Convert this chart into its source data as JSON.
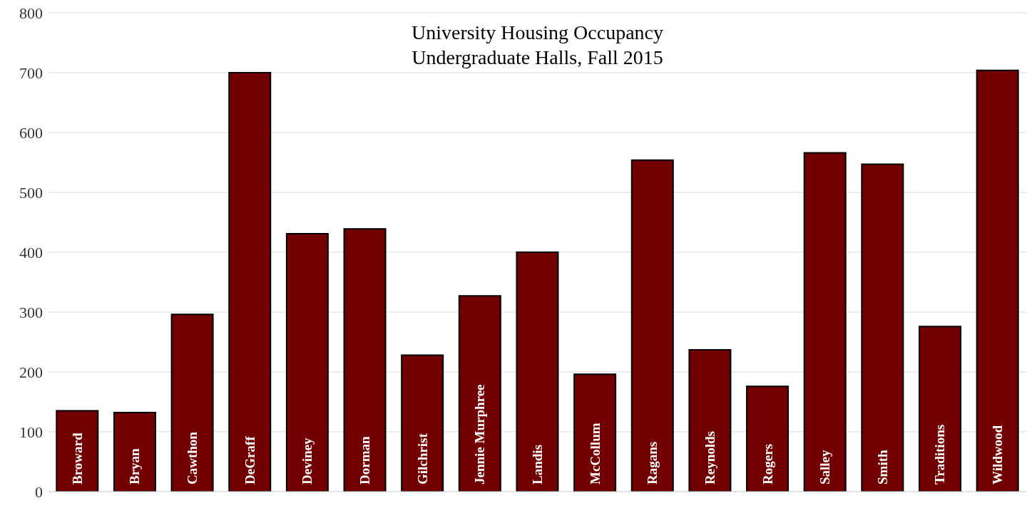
{
  "chart_data": {
    "type": "bar",
    "title": "University Housing Occupancy",
    "subtitle": "Undergraduate Halls, Fall 2015",
    "categories": [
      "Broward",
      "Bryan",
      "Cawthon",
      "DeGraff",
      "Deviney",
      "Dorman",
      "Gilchrist",
      "Jennie Murphree",
      "Landis",
      "McCollum",
      "Ragans",
      "Reynolds",
      "Rogers",
      "Salley",
      "Smith",
      "Traditions",
      "Wildwood"
    ],
    "values": [
      135,
      132,
      296,
      700,
      431,
      439,
      228,
      327,
      400,
      196,
      554,
      237,
      176,
      566,
      547,
      276,
      704
    ],
    "color": "#720000",
    "ylim": [
      0,
      800
    ],
    "yticks": [
      0,
      100,
      200,
      300,
      400,
      500,
      600,
      700,
      800
    ],
    "grid": "y",
    "tick_labels": "y"
  }
}
